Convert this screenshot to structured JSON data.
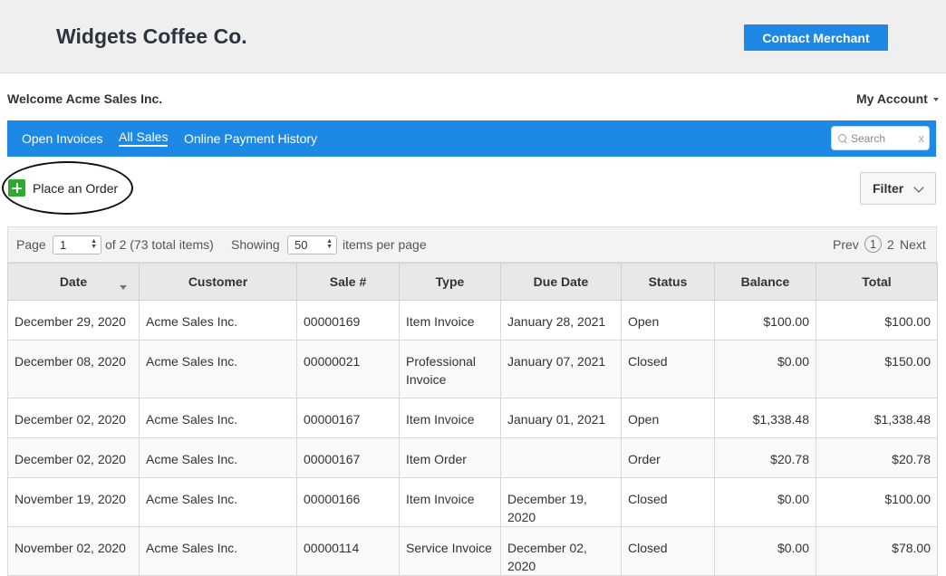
{
  "header": {
    "company": "Widgets Coffee Co.",
    "contact_button": "Contact Merchant"
  },
  "welcome": "Welcome Acme Sales Inc.",
  "account_menu": "My Account",
  "nav": {
    "tabs": [
      {
        "label": "Open Invoices"
      },
      {
        "label": "All Sales",
        "active": true
      },
      {
        "label": "Online Payment History"
      }
    ],
    "search_placeholder": "Search",
    "search_clear": "x"
  },
  "actions": {
    "place_order": "Place an Order",
    "filter": "Filter"
  },
  "pagination": {
    "page_label": "Page",
    "page_value": "1",
    "of_text": "of 2 (73 total items)",
    "showing_label": "Showing",
    "per_page_value": "50",
    "per_page_suffix": "items per page",
    "prev": "Prev",
    "current_page": "1",
    "next_page": "2",
    "next": "Next"
  },
  "table": {
    "columns": [
      "Date",
      "Customer",
      "Sale #",
      "Type",
      "Due Date",
      "Status",
      "Balance",
      "Total"
    ],
    "rows": [
      [
        "December 29, 2020",
        "Acme Sales Inc.",
        "00000169",
        "Item Invoice",
        "January 28, 2021",
        "Open",
        "$100.00",
        "$100.00"
      ],
      [
        "December 08, 2020",
        "Acme Sales Inc.",
        "00000021",
        "Professional Invoice",
        "January 07, 2021",
        "Closed",
        "$0.00",
        "$150.00"
      ],
      [
        "December 02, 2020",
        "Acme Sales Inc.",
        "00000167",
        "Item Invoice",
        "January 01, 2021",
        "Open",
        "$1,338.48",
        "$1,338.48"
      ],
      [
        "December 02, 2020",
        "Acme Sales Inc.",
        "00000167",
        "Item Order",
        "",
        "Order",
        "$20.78",
        "$20.78"
      ],
      [
        "November 19, 2020",
        "Acme Sales Inc.",
        "00000166",
        "Item Invoice",
        "December 19, 2020",
        "Closed",
        "$0.00",
        "$100.00"
      ],
      [
        "November 02, 2020",
        "Acme Sales Inc.",
        "00000114",
        "Service Invoice",
        "December 02, 2020",
        "Closed",
        "$0.00",
        "$78.00"
      ]
    ]
  },
  "colors": {
    "accent": "#1e88e5",
    "add_green": "#2eaa2e"
  }
}
